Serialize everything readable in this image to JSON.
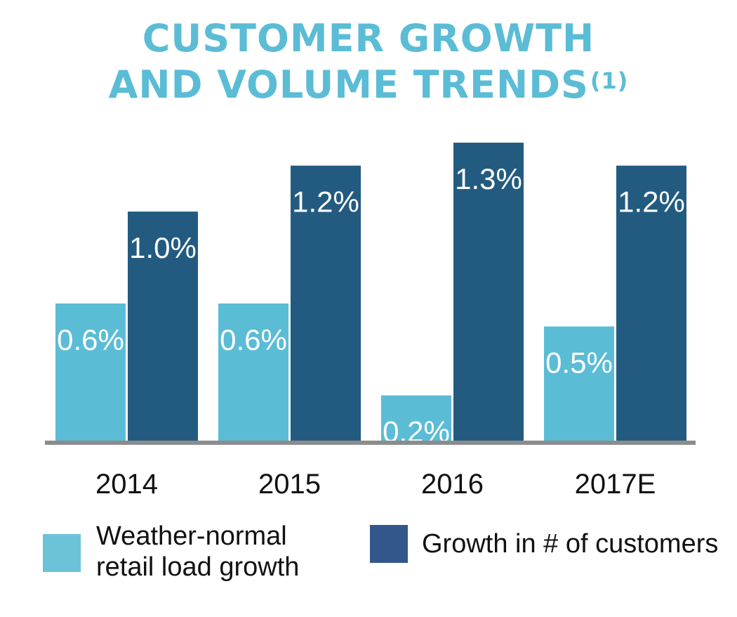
{
  "title": {
    "line1": "CUSTOMER GROWTH",
    "line2": "AND VOLUME TRENDS",
    "footnote": "(1)"
  },
  "colors": {
    "title": "#5bbcd6",
    "light_series": "#5bbcd6",
    "dark_series": "#235b80",
    "axis": "#8c8c8c",
    "bar_label": "#ffffff"
  },
  "chart_data": {
    "type": "bar",
    "categories": [
      "2014",
      "2015",
      "2016",
      "2017E"
    ],
    "series": [
      {
        "name": "Weather-normal retail load growth",
        "values": [
          0.6,
          0.6,
          0.2,
          0.5
        ],
        "labels": [
          "0.6%",
          "0.6%",
          "0.2%",
          "0.5%"
        ],
        "color": "#5bbcd6"
      },
      {
        "name": "Growth in # of customers",
        "values": [
          1.0,
          1.2,
          1.3,
          1.2
        ],
        "labels": [
          "1.0%",
          "1.2%",
          "1.3%",
          "1.2%"
        ],
        "color": "#235b80"
      }
    ],
    "ylim": [
      0,
      1.3
    ],
    "grid": false,
    "legend": "bottom"
  },
  "legend": {
    "items": [
      {
        "label": "Weather-normal\nretail load growth",
        "color": "#6cc3d8"
      },
      {
        "label": "Growth in # of customers",
        "color": "#33578a"
      }
    ]
  }
}
